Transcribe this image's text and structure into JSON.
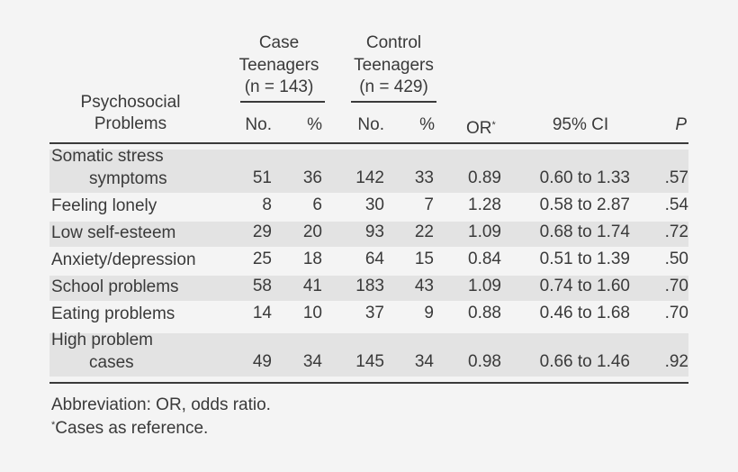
{
  "table": {
    "group_headers": [
      {
        "lines": [
          "Case",
          "Teenagers",
          "(n = 143)"
        ]
      },
      {
        "lines": [
          "Control",
          "Teenagers",
          "(n = 429)"
        ]
      }
    ],
    "stub_header": [
      "Psychosocial",
      "Problems"
    ],
    "columns": [
      "No.",
      "%",
      "No.",
      "%",
      "OR",
      "95% CI",
      "P"
    ],
    "or_marker": "*",
    "rows": [
      {
        "label": [
          "Somatic stress",
          "symptoms"
        ],
        "values": [
          "51",
          "36",
          "142",
          "33",
          "0.89",
          "0.60 to 1.33",
          ".57"
        ],
        "shaded": true
      },
      {
        "label": [
          "Feeling lonely"
        ],
        "values": [
          "8",
          "6",
          "30",
          "7",
          "1.28",
          "0.58 to 2.87",
          ".54"
        ],
        "shaded": false
      },
      {
        "label": [
          "Low self-esteem"
        ],
        "values": [
          "29",
          "20",
          "93",
          "22",
          "1.09",
          "0.68 to 1.74",
          ".72"
        ],
        "shaded": true
      },
      {
        "label": [
          "Anxiety/depression"
        ],
        "values": [
          "25",
          "18",
          "64",
          "15",
          "0.84",
          "0.51 to 1.39",
          ".50"
        ],
        "shaded": false
      },
      {
        "label": [
          "School problems"
        ],
        "values": [
          "58",
          "41",
          "183",
          "43",
          "1.09",
          "0.74 to 1.60",
          ".70"
        ],
        "shaded": true
      },
      {
        "label": [
          "Eating problems"
        ],
        "values": [
          "14",
          "10",
          "37",
          "9",
          "0.88",
          "0.46 to 1.68",
          ".70"
        ],
        "shaded": false
      },
      {
        "label": [
          "High problem",
          "cases"
        ],
        "values": [
          "49",
          "34",
          "145",
          "34",
          "0.98",
          "0.66 to 1.46",
          ".92"
        ],
        "shaded": true
      }
    ]
  },
  "footnotes": {
    "abbreviation": "Abbreviation: OR, odds ratio.",
    "marker": "*",
    "reference": "Cases as reference."
  },
  "colors": {
    "text": "#3a3a3a",
    "background": "#f4f4f4",
    "shade": "#e3e3e3"
  }
}
